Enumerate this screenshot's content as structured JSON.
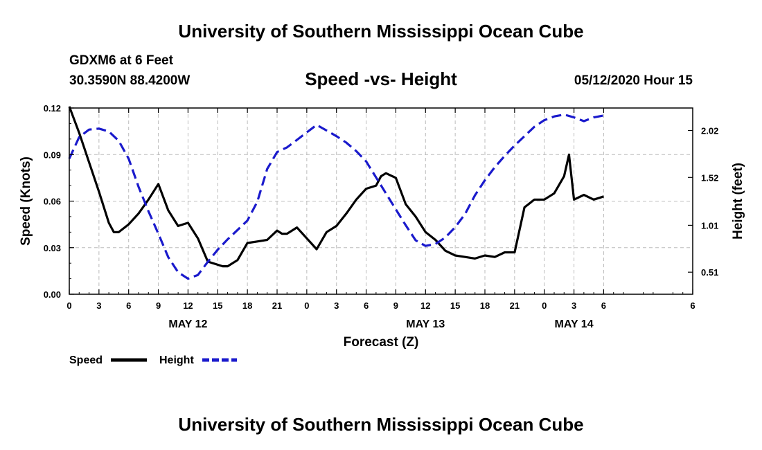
{
  "header": {
    "top_title": "University of Southern Mississippi Ocean Cube",
    "station": "GDXM6 at 6 Feet",
    "coords": "30.3590N 88.4200W",
    "datetime": "05/12/2020 Hour 15"
  },
  "footer": {
    "bottom_title": "University of Southern Mississippi Ocean Cube"
  },
  "colors": {
    "speed": "#000000",
    "height": "#1a1acc",
    "grid": "#bbbbbb"
  },
  "chart_data": {
    "type": "line",
    "title": "Speed -vs- Height",
    "xlabel": "Forecast (Z)",
    "ylabel": "Speed (Knots)",
    "y2label": "Height (feet)",
    "xlim": [
      0,
      63
    ],
    "ylim": [
      0,
      0.12
    ],
    "y2lim": [
      0.275,
      2.26
    ],
    "x_ticks": [
      {
        "x": 0,
        "label": "0"
      },
      {
        "x": 3,
        "label": "3"
      },
      {
        "x": 6,
        "label": "6"
      },
      {
        "x": 9,
        "label": "9"
      },
      {
        "x": 12,
        "label": "12"
      },
      {
        "x": 15,
        "label": "15"
      },
      {
        "x": 18,
        "label": "18"
      },
      {
        "x": 21,
        "label": "21"
      },
      {
        "x": 24,
        "label": "0"
      },
      {
        "x": 27,
        "label": "3"
      },
      {
        "x": 30,
        "label": "6"
      },
      {
        "x": 33,
        "label": "9"
      },
      {
        "x": 36,
        "label": "12"
      },
      {
        "x": 39,
        "label": "15"
      },
      {
        "x": 42,
        "label": "18"
      },
      {
        "x": 45,
        "label": "21"
      },
      {
        "x": 48,
        "label": "0"
      },
      {
        "x": 51,
        "label": "3"
      },
      {
        "x": 54,
        "label": "6"
      }
    ],
    "day_labels": [
      {
        "x": 12,
        "label": "MAY 12"
      },
      {
        "x": 36,
        "label": "MAY 13"
      },
      {
        "x": 51,
        "label": "MAY 14"
      }
    ],
    "y_ticks": [
      {
        "y": 0.0,
        "label": "0.00"
      },
      {
        "y": 0.03,
        "label": "0.03"
      },
      {
        "y": 0.06,
        "label": "0.06"
      },
      {
        "y": 0.09,
        "label": "0.09"
      },
      {
        "y": 0.12,
        "label": "0.12"
      }
    ],
    "y2_ticks": [
      {
        "y": 0.51,
        "label": "0.51"
      },
      {
        "y": 1.01,
        "label": "1.01"
      },
      {
        "y": 1.52,
        "label": "1.52"
      },
      {
        "y": 2.02,
        "label": "2.02"
      }
    ],
    "series": [
      {
        "name": "Speed",
        "axis": "left",
        "style": "solid",
        "x": [
          0,
          1,
          2,
          3,
          4,
          4.5,
          5,
          6,
          7,
          8,
          9,
          10,
          11,
          12,
          13,
          14,
          15,
          15.5,
          16,
          17,
          18,
          19,
          20,
          21,
          21.5,
          22,
          23,
          24,
          25,
          26,
          27,
          28,
          29,
          30,
          31,
          31.5,
          32,
          33,
          34,
          35,
          36,
          37,
          38,
          39,
          40,
          41,
          42,
          43,
          44,
          45,
          46,
          47,
          48,
          49,
          50,
          50.5,
          51,
          52,
          53,
          54
        ],
        "values": [
          0.121,
          0.104,
          0.085,
          0.066,
          0.046,
          0.04,
          0.04,
          0.045,
          0.052,
          0.061,
          0.071,
          0.054,
          0.044,
          0.046,
          0.036,
          0.021,
          0.019,
          0.018,
          0.018,
          0.022,
          0.033,
          0.034,
          0.035,
          0.041,
          0.039,
          0.039,
          0.043,
          0.036,
          0.029,
          0.04,
          0.044,
          0.052,
          0.061,
          0.068,
          0.07,
          0.076,
          0.078,
          0.075,
          0.058,
          0.05,
          0.04,
          0.035,
          0.028,
          0.025,
          0.024,
          0.023,
          0.025,
          0.024,
          0.027,
          0.027,
          0.056,
          0.061,
          0.061,
          0.065,
          0.076,
          0.09,
          0.061,
          0.064,
          0.061,
          0.063
        ]
      },
      {
        "name": "Height",
        "axis": "right",
        "style": "dashed",
        "x": [
          0,
          1,
          2,
          3,
          4,
          5,
          6,
          7,
          8,
          9,
          10,
          11,
          12,
          13,
          14,
          15,
          16,
          17,
          18,
          19,
          20,
          21,
          22,
          23,
          24,
          25,
          26,
          27,
          28,
          29,
          30,
          31,
          32,
          33,
          34,
          35,
          36,
          37,
          38,
          39,
          40,
          41,
          42,
          43,
          44,
          45,
          46,
          47,
          48,
          49,
          50,
          51,
          52,
          53,
          54
        ],
        "values": [
          1.72,
          1.95,
          2.03,
          2.04,
          2.01,
          1.91,
          1.72,
          1.42,
          1.16,
          0.92,
          0.67,
          0.51,
          0.44,
          0.48,
          0.62,
          0.75,
          0.86,
          0.96,
          1.06,
          1.26,
          1.61,
          1.79,
          1.84,
          1.92,
          2.0,
          2.08,
          2.02,
          1.96,
          1.89,
          1.8,
          1.69,
          1.52,
          1.35,
          1.18,
          1.01,
          0.85,
          0.79,
          0.81,
          0.88,
          0.99,
          1.13,
          1.33,
          1.49,
          1.63,
          1.75,
          1.86,
          1.96,
          2.06,
          2.13,
          2.17,
          2.19,
          2.16,
          2.12,
          2.16,
          2.18
        ]
      }
    ],
    "legend": [
      {
        "label": "Speed",
        "series": "Speed"
      },
      {
        "label": "Height",
        "series": "Height"
      }
    ],
    "grid": true
  }
}
